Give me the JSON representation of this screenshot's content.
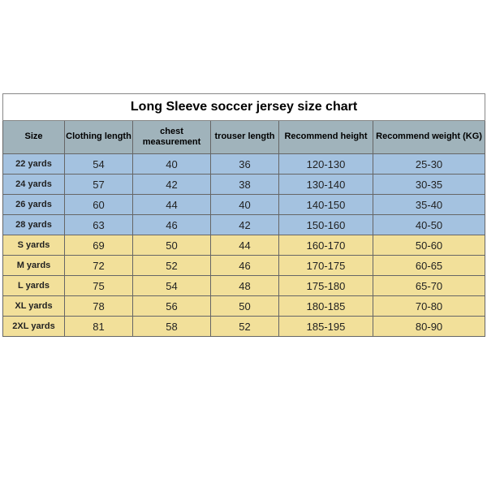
{
  "title": "Long Sleeve soccer jersey size chart",
  "columns": [
    "Size",
    "Clothing length",
    "chest measurement",
    "trouser length",
    "Recommend height",
    "Recommend weight (KG)"
  ],
  "row_colors": {
    "blue": "#a4c2e0",
    "yellow": "#f2e09a",
    "header": "#a0b3bb"
  },
  "rows": [
    {
      "group": "blue",
      "cells": [
        "22 yards",
        "54",
        "40",
        "36",
        "120-130",
        "25-30"
      ]
    },
    {
      "group": "blue",
      "cells": [
        "24 yards",
        "57",
        "42",
        "38",
        "130-140",
        "30-35"
      ]
    },
    {
      "group": "blue",
      "cells": [
        "26 yards",
        "60",
        "44",
        "40",
        "140-150",
        "35-40"
      ]
    },
    {
      "group": "blue",
      "cells": [
        "28 yards",
        "63",
        "46",
        "42",
        "150-160",
        "40-50"
      ]
    },
    {
      "group": "yellow",
      "cells": [
        "S yards",
        "69",
        "50",
        "44",
        "160-170",
        "50-60"
      ]
    },
    {
      "group": "yellow",
      "cells": [
        "M yards",
        "72",
        "52",
        "46",
        "170-175",
        "60-65"
      ]
    },
    {
      "group": "yellow",
      "cells": [
        "L yards",
        "75",
        "54",
        "48",
        "175-180",
        "65-70"
      ]
    },
    {
      "group": "yellow",
      "cells": [
        "XL yards",
        "78",
        "56",
        "50",
        "180-185",
        "70-80"
      ]
    },
    {
      "group": "yellow",
      "cells": [
        "2XL yards",
        "81",
        "58",
        "52",
        "185-195",
        "80-90"
      ]
    }
  ]
}
